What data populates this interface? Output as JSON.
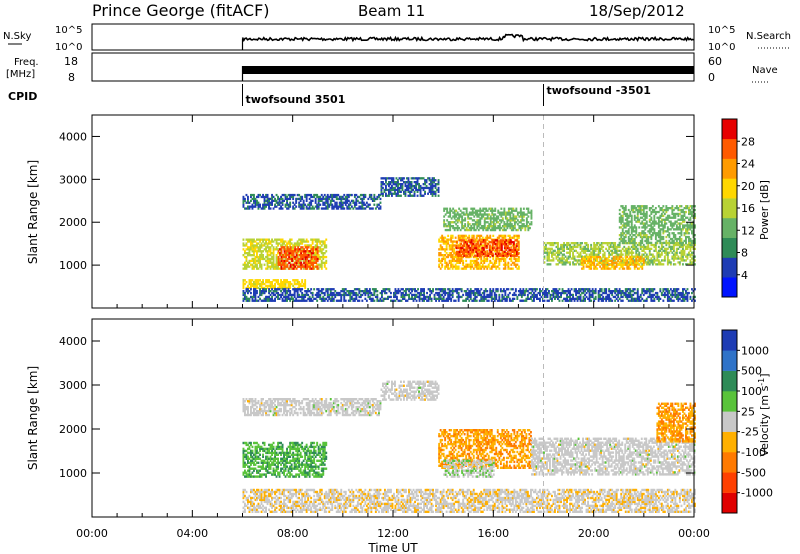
{
  "header": {
    "station": "Prince George (fitACF)",
    "beam": "Beam 11",
    "date": "18/Sep/2012"
  },
  "strip": {
    "nsky_label": "N.Sky",
    "nsky_ticks": [
      "10^5",
      "10^0"
    ],
    "nsky_right_ticks": [
      "10^5",
      "10^0"
    ],
    "nsearch_label": "N.Search",
    "freq_label_1": "Freq.",
    "freq_label_2": "[MHz]",
    "freq_ticks": [
      "18",
      "8"
    ],
    "nave_ticks": [
      "60",
      "0"
    ],
    "nave_label": "Nave",
    "cpid_label": "CPID",
    "cpid_segments": [
      {
        "label": "twofsound 3501",
        "start_hour": 6
      },
      {
        "label": "twofsound -3501",
        "start_hour": 18
      }
    ]
  },
  "axes": {
    "ylabel": "Slant Range [km]",
    "yticks": [
      "4000",
      "3000",
      "2000",
      "1000"
    ],
    "xticks": [
      "00:00",
      "04:00",
      "08:00",
      "12:00",
      "16:00",
      "20:00",
      "00:00"
    ],
    "xlabel": "Time UT"
  },
  "power_scale": {
    "label": "Power [dB]",
    "ticks": [
      "28",
      "24",
      "20",
      "16",
      "12",
      "8",
      "4"
    ],
    "colors": [
      "#0014ff",
      "#1e3cb4",
      "#2e8b57",
      "#66b266",
      "#b8d234",
      "#ffd700",
      "#ff9b00",
      "#ff5a00",
      "#e60000"
    ]
  },
  "velocity_scale": {
    "label": "Velocity [m s",
    "label_sup": "-1",
    "label_close": "]",
    "ticks": [
      "1000",
      "500",
      "100",
      "25",
      "-25",
      "-100",
      "-500",
      "-1000"
    ],
    "colors": [
      "#1e3cb4",
      "#2f73c8",
      "#2e8b57",
      "#59c33a",
      "#c8c8c8",
      "#ffb000",
      "#ff7a00",
      "#ff4000",
      "#e00000"
    ]
  },
  "chart_data": [
    {
      "type": "line",
      "title": "N.Sky / N.Search",
      "x_range": [
        0,
        24
      ],
      "series": [
        {
          "name": "N.Sky",
          "start_hour": 6,
          "level_log10": 2.6
        }
      ]
    },
    {
      "type": "line",
      "title": "Freq / Nave",
      "x_range": [
        0,
        24
      ],
      "series": [
        {
          "name": "Freq.",
          "start_hour": 6,
          "low_mhz": 10,
          "high_mhz": 12
        }
      ]
    },
    {
      "type": "heatmap",
      "title": "Power [dB]",
      "x_range": [
        0,
        24
      ],
      "ylim": [
        0,
        4500
      ],
      "zlim": [
        0,
        30
      ],
      "regions": [
        {
          "t0": 6.0,
          "t1": 11.5,
          "r0": 2300,
          "r1": 2650,
          "z": 6
        },
        {
          "t0": 11.5,
          "t1": 13.8,
          "r0": 2600,
          "r1": 3050,
          "z": 6
        },
        {
          "t0": 6.0,
          "t1": 9.3,
          "r0": 900,
          "r1": 1600,
          "z": 16
        },
        {
          "t0": 7.4,
          "t1": 9.0,
          "r0": 900,
          "r1": 1400,
          "z": 26
        },
        {
          "t0": 6.0,
          "t1": 8.5,
          "r0": 450,
          "r1": 650,
          "z": 18
        },
        {
          "t0": 13.8,
          "t1": 17.0,
          "r0": 900,
          "r1": 1700,
          "z": 20
        },
        {
          "t0": 14.5,
          "t1": 17.0,
          "r0": 1200,
          "r1": 1600,
          "z": 26
        },
        {
          "t0": 14.0,
          "t1": 17.5,
          "r0": 1800,
          "r1": 2300,
          "z": 12
        },
        {
          "t0": 18.0,
          "t1": 24.0,
          "r0": 1000,
          "r1": 1500,
          "z": 14
        },
        {
          "t0": 19.5,
          "t1": 22.0,
          "r0": 900,
          "r1": 1200,
          "z": 20
        },
        {
          "t0": 21.0,
          "t1": 24.0,
          "r0": 1500,
          "r1": 2400,
          "z": 12
        },
        {
          "t0": 6.0,
          "t1": 24.0,
          "r0": 150,
          "r1": 450,
          "z": 6
        }
      ]
    },
    {
      "type": "heatmap",
      "title": "Velocity",
      "x_range": [
        0,
        24
      ],
      "ylim": [
        0,
        4500
      ],
      "zlim": [
        -1000,
        1000
      ],
      "regions": [
        {
          "t0": 6.0,
          "t1": 11.5,
          "r0": 2300,
          "r1": 2700,
          "z": 0
        },
        {
          "t0": 11.5,
          "t1": 13.8,
          "r0": 2650,
          "r1": 3100,
          "z": 0
        },
        {
          "t0": 6.0,
          "t1": 9.3,
          "r0": 900,
          "r1": 1700,
          "z": 300
        },
        {
          "t0": 13.8,
          "t1": 17.5,
          "r0": 1100,
          "r1": 2000,
          "z": -300
        },
        {
          "t0": 14.0,
          "t1": 16.0,
          "r0": 900,
          "r1": 1300,
          "z": 60
        },
        {
          "t0": 17.5,
          "t1": 24.0,
          "r0": 950,
          "r1": 1800,
          "z": 0
        },
        {
          "t0": 22.5,
          "t1": 24.0,
          "r0": 1700,
          "r1": 2600,
          "z": -300
        },
        {
          "t0": 6.0,
          "t1": 24.0,
          "r0": 100,
          "r1": 600,
          "z": -60
        }
      ]
    }
  ]
}
